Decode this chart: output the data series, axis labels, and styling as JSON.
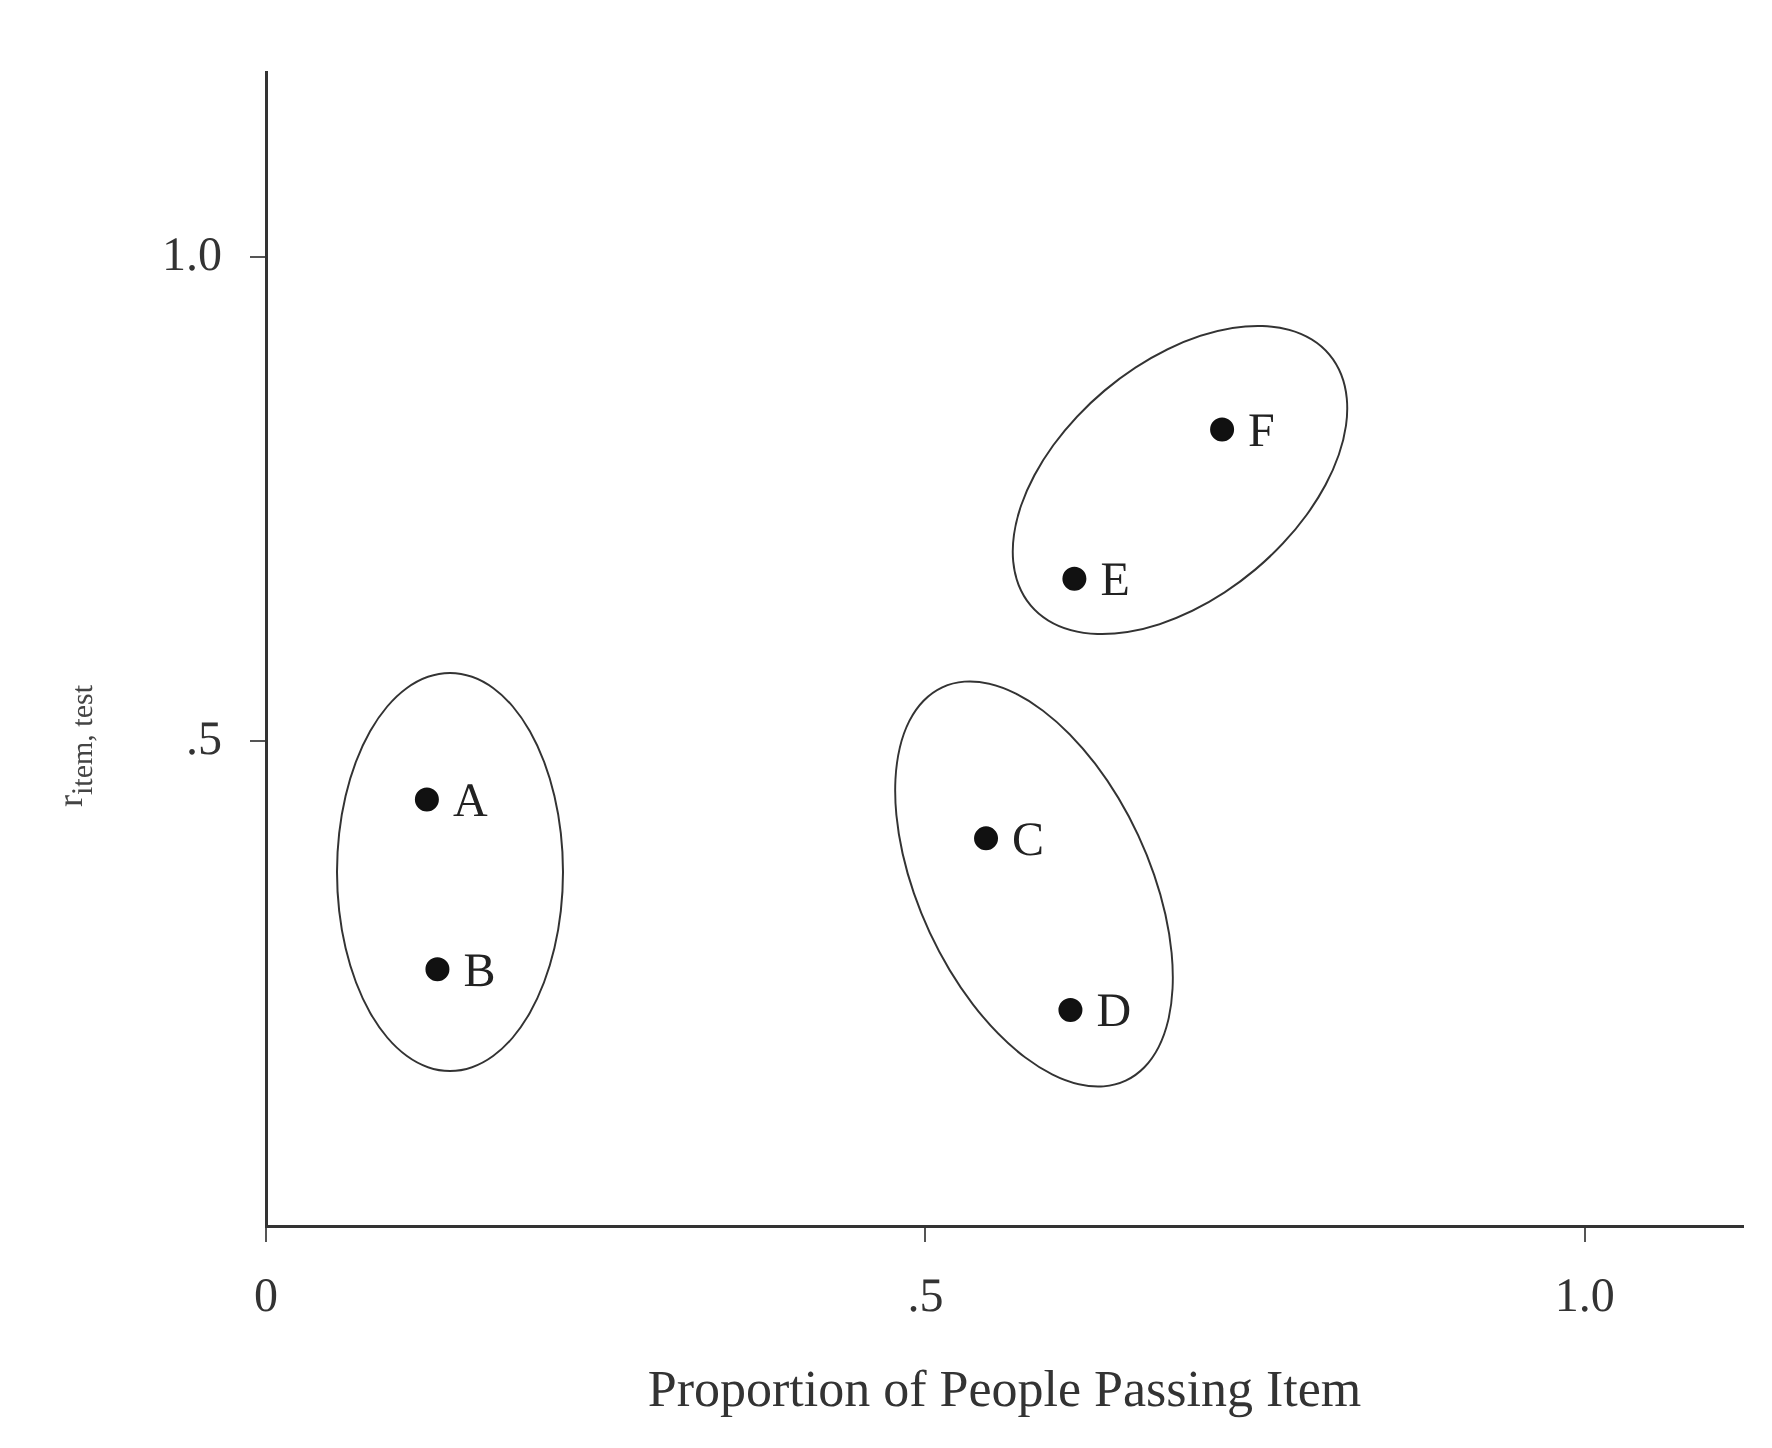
{
  "chart_data": {
    "type": "scatter",
    "xlabel": "Proportion of People Passing Item",
    "ylabel": "r$_{item, test}$",
    "x": [
      0.122,
      0.13,
      0.546,
      0.61,
      0.613,
      0.725
    ],
    "values": [
      0.44,
      0.265,
      0.4,
      0.223,
      0.668,
      0.822
    ],
    "color": "#111111",
    "marker": "circle",
    "grid": false,
    "legend": false,
    "xlim": [
      0,
      1.12
    ],
    "ylim": [
      0,
      1.19
    ],
    "xticks": [
      0,
      {
        "value": 0.5,
        "label": ".5"
      },
      {
        "value": 1,
        "label": "1.0"
      }
    ],
    "yticks": [
      {
        "value": 0.5,
        "label": ".5"
      },
      {
        "value": 1,
        "label": "1.0"
      }
    ],
    "annotations": [
      {
        "text": "A",
        "x": 0.122,
        "y": 0.44
      },
      {
        "text": "B",
        "x": 0.13,
        "y": 0.265
      },
      {
        "text": "C",
        "x": 0.546,
        "y": 0.4
      },
      {
        "text": "D",
        "x": 0.61,
        "y": 0.223
      },
      {
        "text": "E",
        "x": 0.613,
        "y": 0.668
      },
      {
        "text": "F",
        "x": 0.725,
        "y": 0.822
      }
    ]
  }
}
